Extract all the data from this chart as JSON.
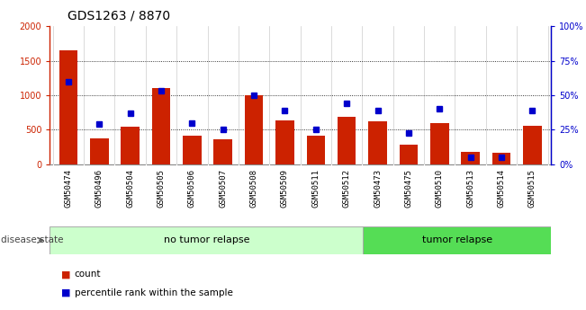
{
  "title": "GDS1263 / 8870",
  "samples": [
    "GSM50474",
    "GSM50496",
    "GSM50504",
    "GSM50505",
    "GSM50506",
    "GSM50507",
    "GSM50508",
    "GSM50509",
    "GSM50511",
    "GSM50512",
    "GSM50473",
    "GSM50475",
    "GSM50510",
    "GSM50513",
    "GSM50514",
    "GSM50515"
  ],
  "counts": [
    1650,
    380,
    550,
    1100,
    420,
    360,
    1000,
    630,
    420,
    690,
    620,
    285,
    600,
    185,
    165,
    560
  ],
  "percentiles": [
    60,
    29,
    37,
    53,
    30,
    25,
    50,
    39,
    25,
    44,
    39,
    23,
    40,
    5,
    5,
    39
  ],
  "no_tumor_count": 10,
  "tumor_count": 6,
  "ylim_left": [
    0,
    2000
  ],
  "ylim_right": [
    0,
    100
  ],
  "yticks_left": [
    0,
    500,
    1000,
    1500,
    2000
  ],
  "yticks_right": [
    0,
    25,
    50,
    75,
    100
  ],
  "grid_values": [
    500,
    1000,
    1500
  ],
  "bar_color": "#cc2200",
  "dot_color": "#0000cc",
  "no_tumor_bg": "#ccffcc",
  "tumor_bg": "#55dd55",
  "xlabel_area_bg": "#cccccc",
  "legend_count_color": "#cc2200",
  "legend_pct_color": "#0000cc",
  "title_fontsize": 10,
  "label_fontsize": 6.5,
  "tick_fontsize": 7,
  "disease_state_fontsize": 8,
  "legend_fontsize": 7.5
}
